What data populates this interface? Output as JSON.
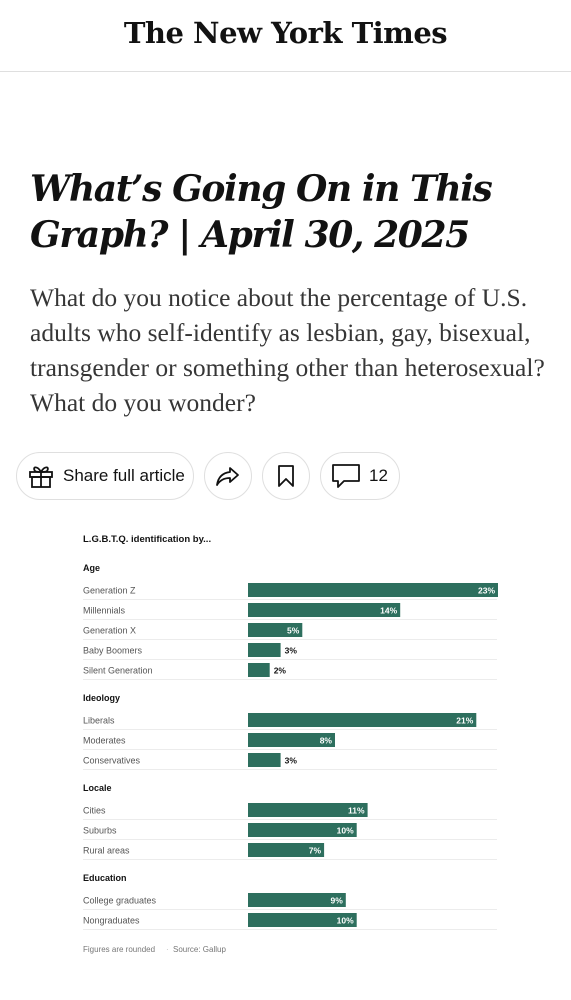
{
  "masthead": {
    "logo": "The New York Times"
  },
  "article": {
    "headline": "What’s Going On in This Graph? | April 30, 2025",
    "summary": "What do you notice about the percentage of U.S. adults who self-identify as lesbian, gay, bisexual, transgender or something other than heterosexual? What do you wonder?"
  },
  "actions": {
    "share_label": "Share full article",
    "comment_count": "12",
    "icons": [
      "gift-icon",
      "forward-arrow-icon",
      "bookmark-icon",
      "comment-bubble-icon"
    ]
  },
  "chart_data": {
    "type": "bar",
    "orientation": "horizontal",
    "title": "L.G.B.T.Q. identification by...",
    "unit": "%",
    "xlim": [
      0,
      23
    ],
    "bar_color": "#2e6f5e",
    "groups": [
      {
        "name": "Age",
        "categories": [
          "Generation Z",
          "Millennials",
          "Generation X",
          "Baby Boomers",
          "Silent Generation"
        ],
        "values": [
          23,
          14,
          5,
          3,
          2
        ]
      },
      {
        "name": "Ideology",
        "categories": [
          "Liberals",
          "Moderates",
          "Conservatives"
        ],
        "values": [
          21,
          8,
          3
        ]
      },
      {
        "name": "Locale",
        "categories": [
          "Cities",
          "Suburbs",
          "Rural areas"
        ],
        "values": [
          11,
          10,
          7
        ]
      },
      {
        "name": "Education",
        "categories": [
          "College graduates",
          "Nongraduates"
        ],
        "values": [
          9,
          10
        ]
      }
    ],
    "footnote": "Figures are rounded",
    "source": "Source: Gallup"
  }
}
